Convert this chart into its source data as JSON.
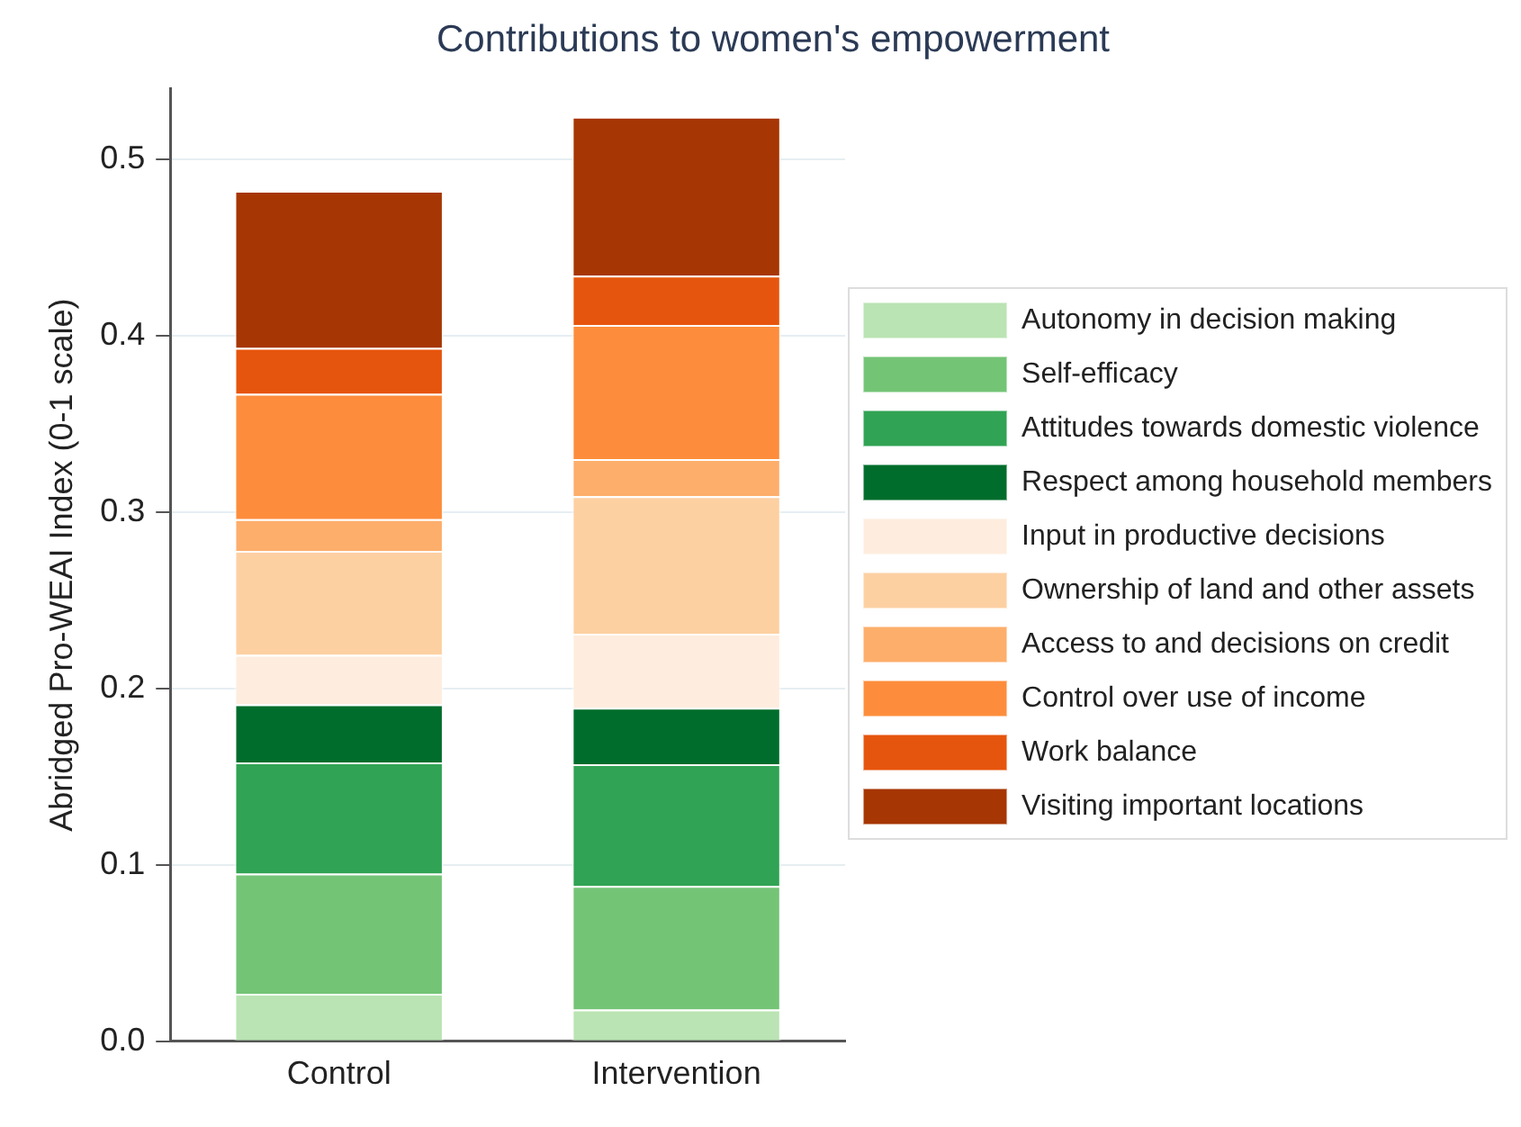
{
  "chart_data": {
    "type": "bar",
    "stacked": true,
    "title": "Contributions to women's empowerment",
    "ylabel": "Abridged Pro-WEAI Index (0-1 scale)",
    "categories": [
      "Control",
      "Intervention"
    ],
    "ylim": [
      0,
      0.54
    ],
    "yticks": [
      {
        "value": 0,
        "label": "0.0"
      },
      0.1,
      0.2,
      0.3,
      0.4,
      0.5
    ],
    "grid": "y",
    "legend": "right",
    "series": [
      {
        "name": "Autonomy in decision making",
        "color": "#bae4b3",
        "values": [
          0.027,
          0.018
        ]
      },
      {
        "name": "Self-efficacy",
        "color": "#74c476",
        "values": [
          0.068,
          0.07
        ]
      },
      {
        "name": "Attitudes towards domestic violence",
        "color": "#31a354",
        "values": [
          0.063,
          0.069
        ]
      },
      {
        "name": "Respect among household members",
        "color": "#006d2c",
        "values": [
          0.033,
          0.032
        ]
      },
      {
        "name": "Input in productive decisions",
        "color": "#feedde",
        "values": [
          0.028,
          0.042
        ]
      },
      {
        "name": "Ownership of land and other assets",
        "color": "#fdd0a2",
        "values": [
          0.059,
          0.078
        ]
      },
      {
        "name": "Access to and decisions on credit",
        "color": "#fdae6b",
        "values": [
          0.018,
          0.021
        ]
      },
      {
        "name": "Control over use of income",
        "color": "#fd8d3c",
        "values": [
          0.071,
          0.076
        ]
      },
      {
        "name": "Work balance",
        "color": "#e6550d",
        "values": [
          0.026,
          0.028
        ]
      },
      {
        "name": "Visiting important locations",
        "color": "#a63603",
        "values": [
          0.089,
          0.09
        ]
      }
    ]
  }
}
